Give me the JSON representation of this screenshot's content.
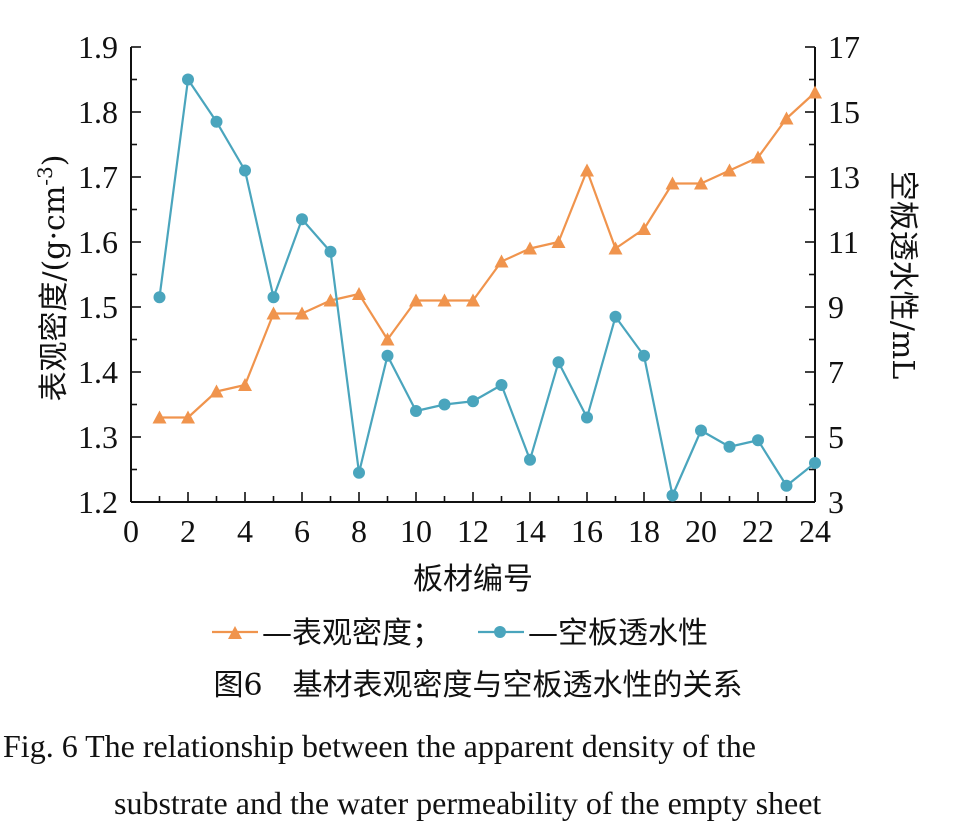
{
  "chart_data": {
    "type": "line",
    "x_axis": {
      "label": "板材编号",
      "range": [
        0,
        24
      ],
      "ticks": [
        "0",
        "2",
        "4",
        "6",
        "8",
        "10",
        "12",
        "14",
        "16",
        "18",
        "20",
        "22",
        "24"
      ]
    },
    "y_left": {
      "label_main": "表观密度/(g·cm",
      "label_sup": "-3",
      "label_close": ")",
      "range": [
        1.2,
        1.9
      ],
      "ticks": [
        "1.2",
        "1.3",
        "1.4",
        "1.5",
        "1.6",
        "1.7",
        "1.8",
        "1.9"
      ]
    },
    "y_right": {
      "label": "空板透水性/mL",
      "range": [
        3,
        17
      ],
      "ticks": [
        "3",
        "5",
        "7",
        "9",
        "11",
        "13",
        "15",
        "17"
      ]
    },
    "x": [
      1,
      2,
      3,
      4,
      5,
      6,
      7,
      8,
      9,
      10,
      11,
      12,
      13,
      14,
      15,
      16,
      17,
      18,
      19,
      20,
      21,
      22,
      23,
      24
    ],
    "series": [
      {
        "name": "表观密度",
        "axis": "left",
        "marker": "triangle",
        "color": "#f0944d",
        "values": [
          1.33,
          1.33,
          1.37,
          1.38,
          1.49,
          1.49,
          1.51,
          1.52,
          1.45,
          1.51,
          1.51,
          1.51,
          1.57,
          1.59,
          1.6,
          1.71,
          1.59,
          1.62,
          1.69,
          1.69,
          1.71,
          1.73,
          1.79,
          1.83
        ]
      },
      {
        "name": "空板透水性",
        "axis": "right",
        "marker": "circle",
        "color": "#4aa5bd",
        "values": [
          9.3,
          16.0,
          14.7,
          13.2,
          9.3,
          11.7,
          10.7,
          3.9,
          7.5,
          5.8,
          6.0,
          6.1,
          6.6,
          4.3,
          7.3,
          5.6,
          8.7,
          7.5,
          3.2,
          5.2,
          4.7,
          4.9,
          3.5,
          4.2
        ]
      }
    ],
    "legend": {
      "position": "bottom",
      "dash": "—",
      "sep": "；"
    }
  },
  "caption": {
    "cn": "图6　基材表观密度与空板透水性的关系",
    "en_line1": "Fig. 6   The relationship between the apparent density of the",
    "en_line2": "substrate and the water permeability of the empty sheet"
  }
}
